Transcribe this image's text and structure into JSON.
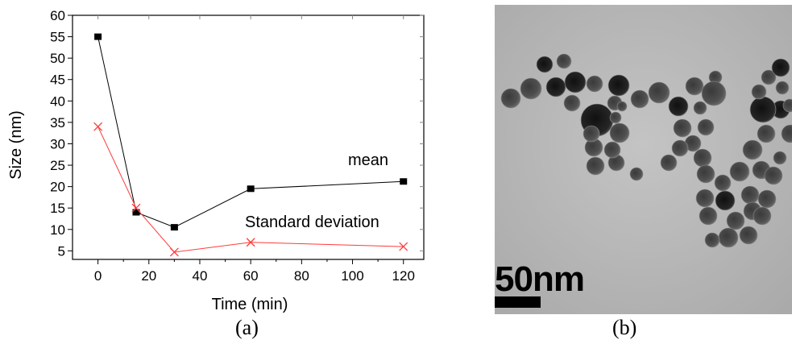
{
  "chart_data": {
    "type": "line",
    "title": "",
    "xlabel": "Time (min)",
    "ylabel": "Size (nm)",
    "xlim": [
      -10,
      128
    ],
    "ylim": [
      3,
      60
    ],
    "xticks": [
      0,
      20,
      40,
      60,
      80,
      100,
      120
    ],
    "yticks": [
      5,
      10,
      15,
      20,
      25,
      30,
      35,
      40,
      45,
      50,
      55,
      60
    ],
    "grid": false,
    "series": [
      {
        "name": "mean",
        "marker": "square",
        "color": "#000000",
        "x": [
          0,
          15,
          30,
          60,
          120
        ],
        "y": [
          55,
          14,
          10.5,
          19.5,
          21.2
        ]
      },
      {
        "name": "Standard deviation",
        "marker": "x",
        "color": "#ff3b3b",
        "x": [
          0,
          15,
          30,
          60,
          120
        ],
        "y": [
          34,
          15,
          4.7,
          7,
          6
        ]
      }
    ]
  },
  "panel_b": {
    "scale_label": "50nm"
  },
  "captions": {
    "a": "(a)",
    "b": "(b)"
  }
}
